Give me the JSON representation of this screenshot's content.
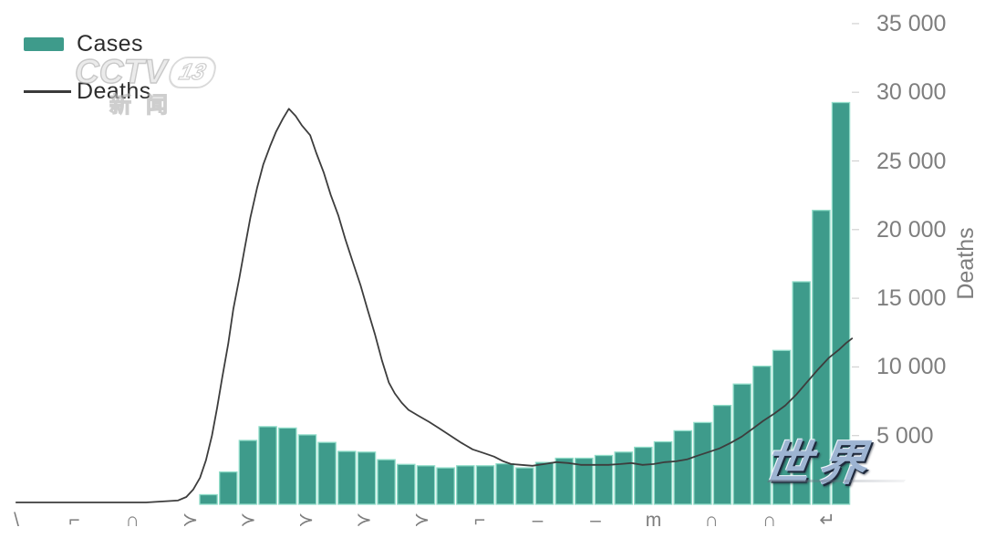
{
  "legend": {
    "items": [
      {
        "label": "Cases",
        "swatch": "bar",
        "color": "#3e9b8b"
      },
      {
        "label": "Deaths",
        "swatch": "line",
        "color": "#3a3a3a"
      }
    ]
  },
  "watermarks": {
    "cctv": {
      "station": "CCTV",
      "channel": "13",
      "subtitle": "新闻"
    },
    "world": {
      "text": "世界"
    }
  },
  "right_axis": {
    "label": "Deaths",
    "ticks": [
      {
        "value": 35000,
        "label": "35 000"
      },
      {
        "value": 30000,
        "label": "30 000"
      },
      {
        "value": 25000,
        "label": "25 000"
      },
      {
        "value": 20000,
        "label": "20 000"
      },
      {
        "value": 15000,
        "label": "15 000"
      },
      {
        "value": 10000,
        "label": "10 000"
      },
      {
        "value": 5000,
        "label": "5 000"
      }
    ]
  },
  "x_axis": {
    "labels_cropped": true,
    "fragment_glyphs": [
      "\\",
      "⌐",
      "∩",
      "≻",
      "≻",
      "≻",
      "≻",
      "≻",
      "⌐",
      "–",
      "–",
      "m",
      "∩",
      "∩",
      "↵"
    ]
  },
  "chart_data": {
    "type": "combo",
    "title": "",
    "legend_position": "top-left",
    "grid": false,
    "y_axis_right": {
      "label": "Deaths",
      "tick_values": [
        5000,
        10000,
        15000,
        20000,
        25000,
        30000,
        35000
      ],
      "range": [
        0,
        36000
      ]
    },
    "x_axis": {
      "tick_labels_visible": false,
      "tick_count": 15
    },
    "series": [
      {
        "name": "Cases",
        "type": "bar",
        "color": "#3e9b8b",
        "edge_color": "#8fdcc8",
        "axis_note": "bar heights read against the right Deaths scale; dedicated Cases axis cropped out of frame",
        "values": [
          700,
          2350,
          4650,
          5650,
          5550,
          5050,
          4500,
          3850,
          3800,
          3250,
          2900,
          2800,
          2650,
          2800,
          2800,
          2950,
          2650,
          3050,
          3350,
          3350,
          3550,
          3800,
          4150,
          4550,
          5350,
          5950,
          7200,
          8750,
          10050,
          11200,
          16200,
          21400,
          29250
        ]
      },
      {
        "name": "Deaths",
        "type": "line",
        "color": "#3d3d3d",
        "points_format": "[fraction_of_plot_width, deaths_value]",
        "points": [
          [
            0.019,
            130
          ],
          [
            0.107,
            130
          ],
          [
            0.171,
            130
          ],
          [
            0.208,
            270
          ],
          [
            0.218,
            530
          ],
          [
            0.226,
            1070
          ],
          [
            0.234,
            1930
          ],
          [
            0.241,
            3200
          ],
          [
            0.248,
            5000
          ],
          [
            0.254,
            7000
          ],
          [
            0.26,
            9200
          ],
          [
            0.267,
            11670
          ],
          [
            0.273,
            14200
          ],
          [
            0.28,
            16470
          ],
          [
            0.286,
            18530
          ],
          [
            0.293,
            20870
          ],
          [
            0.301,
            23070
          ],
          [
            0.308,
            24730
          ],
          [
            0.316,
            26070
          ],
          [
            0.323,
            27130
          ],
          [
            0.331,
            28070
          ],
          [
            0.338,
            28800
          ],
          [
            0.346,
            28270
          ],
          [
            0.353,
            27600
          ],
          [
            0.363,
            26870
          ],
          [
            0.37,
            25600
          ],
          [
            0.379,
            24130
          ],
          [
            0.387,
            22530
          ],
          [
            0.396,
            21000
          ],
          [
            0.404,
            19330
          ],
          [
            0.413,
            17600
          ],
          [
            0.422,
            15930
          ],
          [
            0.43,
            14200
          ],
          [
            0.439,
            12330
          ],
          [
            0.447,
            10470
          ],
          [
            0.455,
            8870
          ],
          [
            0.462,
            8070
          ],
          [
            0.47,
            7400
          ],
          [
            0.478,
            6870
          ],
          [
            0.489,
            6470
          ],
          [
            0.502,
            6000
          ],
          [
            0.514,
            5530
          ],
          [
            0.527,
            5000
          ],
          [
            0.54,
            4470
          ],
          [
            0.553,
            4000
          ],
          [
            0.566,
            3730
          ],
          [
            0.578,
            3470
          ],
          [
            0.589,
            3130
          ],
          [
            0.598,
            2930
          ],
          [
            0.61,
            2870
          ],
          [
            0.623,
            2800
          ],
          [
            0.637,
            2930
          ],
          [
            0.651,
            3070
          ],
          [
            0.665,
            3000
          ],
          [
            0.68,
            2870
          ],
          [
            0.696,
            2870
          ],
          [
            0.712,
            2870
          ],
          [
            0.726,
            2930
          ],
          [
            0.739,
            3000
          ],
          [
            0.752,
            2870
          ],
          [
            0.765,
            2930
          ],
          [
            0.778,
            3070
          ],
          [
            0.791,
            3130
          ],
          [
            0.804,
            3270
          ],
          [
            0.816,
            3530
          ],
          [
            0.829,
            3800
          ],
          [
            0.842,
            4070
          ],
          [
            0.855,
            4470
          ],
          [
            0.868,
            4930
          ],
          [
            0.88,
            5470
          ],
          [
            0.893,
            6070
          ],
          [
            0.906,
            6600
          ],
          [
            0.919,
            7200
          ],
          [
            0.932,
            8000
          ],
          [
            0.944,
            8870
          ],
          [
            0.957,
            9800
          ],
          [
            0.97,
            10670
          ],
          [
            0.982,
            11270
          ],
          [
            0.99,
            11730
          ],
          [
            0.997,
            12070
          ]
        ]
      }
    ]
  }
}
